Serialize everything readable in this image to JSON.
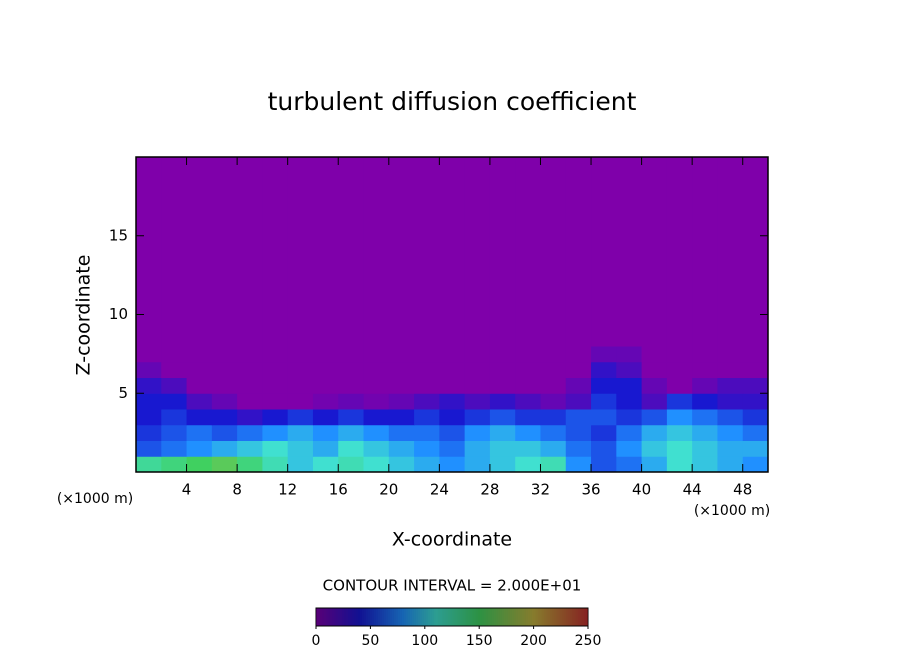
{
  "chart_data": {
    "type": "contour",
    "title": "turbulent diffusion coefficient",
    "x_label": "X-coordinate",
    "y_label": "Z-coordinate",
    "x_unit_left": "(×1000 m)",
    "x_unit_right": "(×1000 m)",
    "contour_note": "CONTOUR INTERVAL = 2.000E+01",
    "xlim": [
      0,
      50
    ],
    "ylim": [
      0,
      20
    ],
    "xticks": [
      4,
      8,
      12,
      16,
      20,
      24,
      28,
      32,
      36,
      40,
      44,
      48
    ],
    "yticks": [
      5,
      10,
      15
    ],
    "xedges": [
      0,
      2,
      4,
      6,
      8,
      10,
      12,
      14,
      16,
      18,
      20,
      22,
      24,
      26,
      28,
      30,
      32,
      34,
      36,
      38,
      40,
      42,
      44,
      46,
      48,
      50
    ],
    "zedges": [
      0,
      1,
      2,
      3,
      4,
      5,
      6,
      7,
      8,
      20
    ],
    "z": [
      [
        130,
        140,
        150,
        160,
        140,
        120,
        100,
        110,
        120,
        110,
        100,
        90,
        80,
        90,
        100,
        110,
        120,
        80,
        60,
        70,
        90,
        110,
        100,
        90,
        80
      ],
      [
        60,
        70,
        80,
        90,
        100,
        110,
        100,
        90,
        110,
        100,
        90,
        80,
        70,
        90,
        100,
        100,
        90,
        70,
        60,
        80,
        100,
        110,
        100,
        90,
        90
      ],
      [
        50,
        60,
        70,
        60,
        70,
        80,
        90,
        80,
        90,
        80,
        70,
        70,
        60,
        80,
        90,
        80,
        70,
        60,
        50,
        70,
        90,
        100,
        90,
        80,
        70
      ],
      [
        40,
        50,
        40,
        40,
        30,
        40,
        50,
        40,
        50,
        40,
        40,
        50,
        40,
        50,
        60,
        50,
        50,
        60,
        60,
        50,
        60,
        80,
        70,
        60,
        50
      ],
      [
        40,
        40,
        20,
        10,
        0,
        0,
        0,
        5,
        10,
        5,
        10,
        20,
        30,
        20,
        30,
        20,
        10,
        20,
        50,
        40,
        20,
        50,
        40,
        30,
        30
      ],
      [
        30,
        20,
        0,
        0,
        0,
        0,
        0,
        0,
        0,
        0,
        0,
        0,
        0,
        0,
        0,
        0,
        0,
        10,
        40,
        40,
        10,
        0,
        10,
        20,
        20
      ],
      [
        10,
        0,
        0,
        0,
        0,
        0,
        0,
        0,
        0,
        0,
        0,
        0,
        0,
        0,
        0,
        0,
        0,
        0,
        30,
        20,
        0,
        0,
        0,
        0,
        0
      ],
      [
        0,
        0,
        0,
        0,
        0,
        0,
        0,
        0,
        0,
        0,
        0,
        0,
        0,
        0,
        0,
        0,
        0,
        0,
        10,
        10,
        0,
        0,
        0,
        0,
        0
      ],
      [
        0,
        0,
        0,
        0,
        0,
        0,
        0,
        0,
        0,
        0,
        0,
        0,
        0,
        0,
        0,
        0,
        0,
        0,
        0,
        0,
        0,
        0,
        0,
        0,
        0
      ]
    ],
    "clim": [
      0,
      250
    ],
    "cticks": [
      0,
      50,
      100,
      150,
      200,
      250
    ],
    "colorscale": [
      [
        0,
        "#7f00aa"
      ],
      [
        40,
        "#1818d0"
      ],
      [
        80,
        "#2090ff"
      ],
      [
        110,
        "#40e0d0"
      ],
      [
        150,
        "#40d060"
      ],
      [
        200,
        "#c0b040"
      ],
      [
        250,
        "#c03030"
      ]
    ]
  }
}
